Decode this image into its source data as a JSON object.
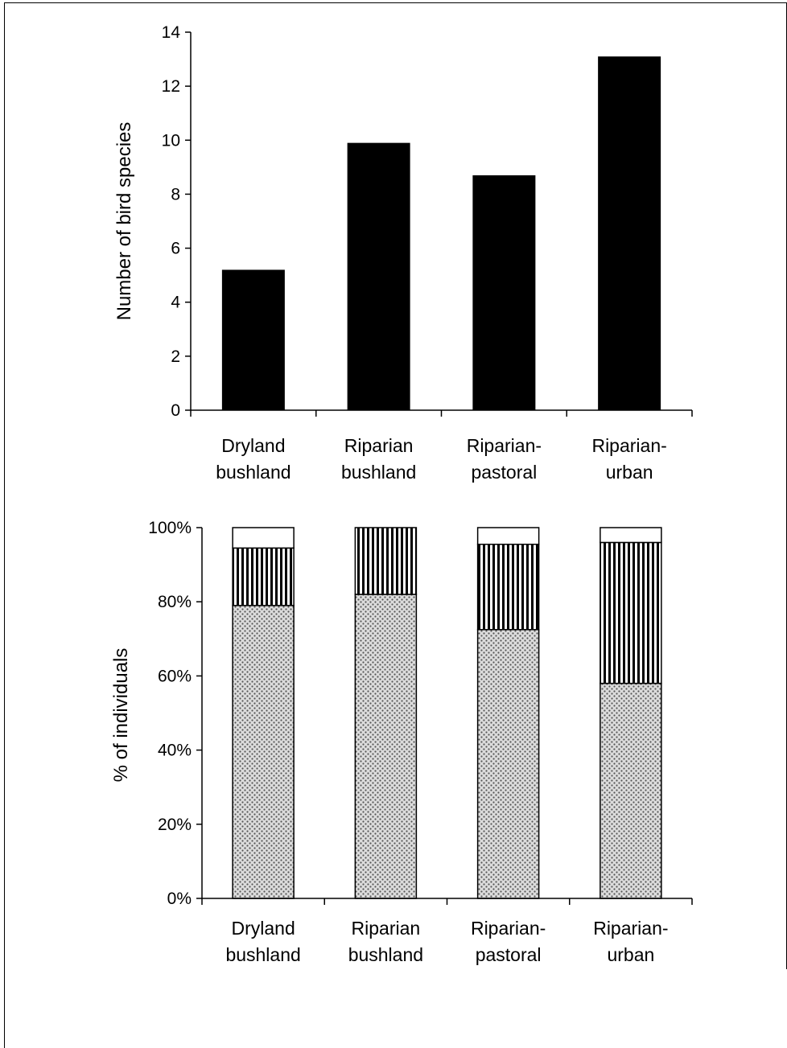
{
  "chart_data": [
    {
      "type": "bar",
      "ylabel": "Number of bird species",
      "ylim": [
        0,
        14
      ],
      "yticks": [
        "0",
        "2",
        "4",
        "6",
        "8",
        "10",
        "12",
        "14"
      ],
      "categories": [
        [
          "Dryland",
          "bushland"
        ],
        [
          "Riparian",
          "bushland"
        ],
        [
          "Riparian-",
          "pastoral"
        ],
        [
          "Riparian-",
          "urban"
        ]
      ],
      "values": [
        5.2,
        9.9,
        8.7,
        13.1
      ],
      "bar_color": "#000000",
      "grid": false,
      "legend": "none"
    },
    {
      "type": "stacked-bar-percent",
      "ylabel": "% of individuals",
      "ylim": [
        0,
        100
      ],
      "yticks": [
        "0%",
        "20%",
        "40%",
        "60%",
        "80%",
        "100%"
      ],
      "categories": [
        [
          "Dryland",
          "bushland"
        ],
        [
          "Riparian",
          "bushland"
        ],
        [
          "Riparian-",
          "pastoral"
        ],
        [
          "Riparian-",
          "urban"
        ]
      ],
      "series": [
        {
          "fill": "stipple",
          "values": [
            79,
            82,
            72.5,
            58
          ]
        },
        {
          "fill": "vertical-hatch",
          "values": [
            15.5,
            18,
            23,
            38
          ]
        },
        {
          "fill": "white",
          "values": [
            5.5,
            0,
            4.5,
            4
          ]
        }
      ],
      "grid": false,
      "legend": "none"
    }
  ]
}
